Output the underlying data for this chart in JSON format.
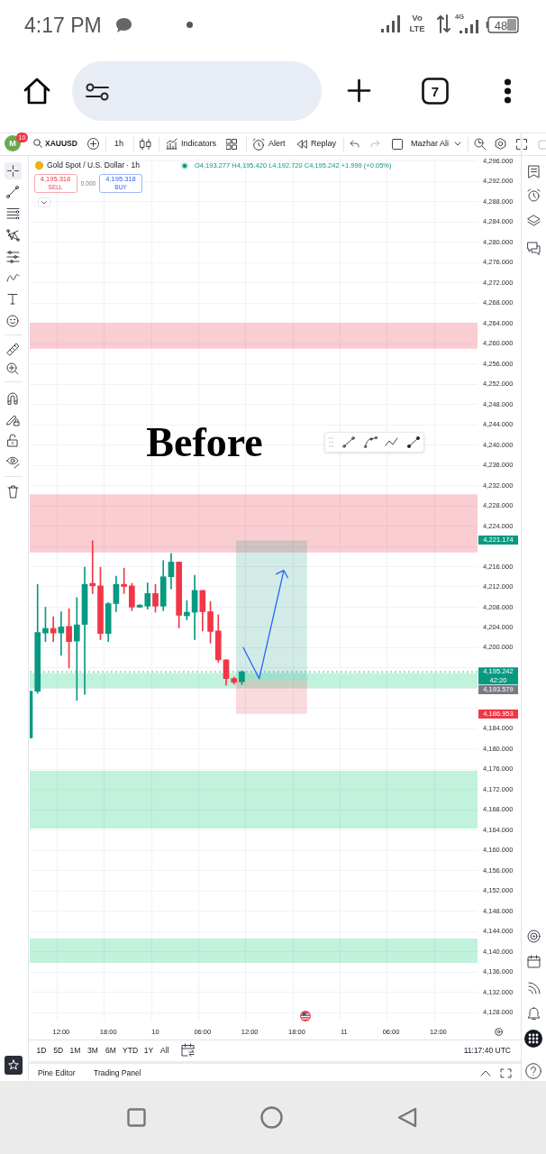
{
  "chart_data": {
    "type": "candlestick",
    "title": "Gold Spot / U.S. Dollar · 1h",
    "subtitle": "O4,193.277 H4,195.420 L4,192.720 C4,195.242 +1.999 (+0.05%)",
    "categories": [
      null,
      null,
      null,
      null,
      "12:00",
      null,
      null,
      null,
      null,
      null,
      "18:00",
      null,
      null,
      null,
      null,
      null,
      "10",
      null,
      null,
      null,
      null,
      null,
      "06:00",
      null,
      null,
      null,
      null,
      null,
      "12:00",
      null,
      null,
      null,
      null,
      null,
      "18:00",
      null,
      null,
      null,
      null,
      null,
      "11",
      null,
      null,
      null,
      null,
      null,
      "06:00",
      null,
      null,
      null,
      null,
      null,
      "12:00",
      null,
      null,
      null,
      null,
      null
    ],
    "ohlc": [
      [
        4182.2,
        4191.5,
        4182.2,
        4191.4
      ],
      [
        4191.4,
        4212.5,
        4191.0,
        4203.0
      ],
      [
        4202.9,
        4208.0,
        4201.2,
        4203.8
      ],
      [
        4203.8,
        4206.1,
        4201.2,
        4202.9
      ],
      [
        4202.9,
        4207.1,
        4198.5,
        4204.1
      ],
      [
        4204.2,
        4207.7,
        4196.0,
        4201.2
      ],
      [
        4201.3,
        4209.9,
        4189.6,
        4204.5
      ],
      [
        4204.6,
        4215.9,
        4190.8,
        4212.5
      ],
      [
        4212.7,
        4221.1,
        4210.7,
        4212.2
      ],
      [
        4212.2,
        4215.9,
        4201.6,
        4202.8
      ],
      [
        4202.8,
        4208.9,
        4201.2,
        4208.7
      ],
      [
        4208.7,
        4214.1,
        4207.1,
        4212.5
      ],
      [
        4212.5,
        4215.7,
        4210.7,
        4212.1
      ],
      [
        4212.2,
        4212.7,
        4207.3,
        4208.0
      ],
      [
        4208.0,
        4208.5,
        4207.9,
        4208.4
      ],
      [
        4208.2,
        4212.8,
        4207.6,
        4210.7
      ],
      [
        4210.7,
        4212.5,
        4207.0,
        4208.2
      ],
      [
        4208.2,
        4217.2,
        4207.3,
        4214.0
      ],
      [
        4214.0,
        4218.6,
        4211.6,
        4216.9
      ],
      [
        4216.9,
        4216.9,
        4203.9,
        4206.4
      ],
      [
        4206.3,
        4209.3,
        4205.5,
        4207.0
      ],
      [
        4207.0,
        4214.3,
        4201.6,
        4211.3
      ],
      [
        4211.3,
        4211.3,
        4203.3,
        4207.1
      ],
      [
        4207.1,
        4209.1,
        4200.9,
        4203.2
      ],
      [
        4203.3,
        4206.5,
        4197.1,
        4197.6
      ],
      [
        4197.6,
        4197.6,
        4192.6,
        4193.9
      ],
      [
        4193.9,
        4194.2,
        4192.8,
        4193.2
      ],
      [
        4193.277,
        4195.42,
        4192.72,
        4195.242
      ],
      null,
      null,
      null,
      null,
      null,
      null,
      null,
      null,
      null,
      null,
      null,
      null,
      null,
      null,
      null,
      null,
      null,
      null,
      null,
      null,
      null,
      null,
      null,
      null,
      null,
      null,
      null,
      null,
      null,
      null
    ],
    "colors": [
      "#089981",
      "#089981",
      "#089981",
      "#f23645",
      "#089981",
      "#f23645",
      "#089981",
      "#089981",
      "#f23645",
      "#f23645",
      "#089981",
      "#089981",
      "#f23645",
      "#f23645",
      "#089981",
      "#089981",
      "#f23645",
      "#089981",
      "#089981",
      "#f23645",
      "#089981",
      "#089981",
      "#f23645",
      "#f23645",
      "#f23645",
      "#f23645",
      "#f23645",
      "#089981",
      null,
      null,
      null,
      null,
      null,
      null,
      null,
      null,
      null,
      null,
      null,
      null,
      null,
      null,
      null,
      null,
      null,
      null,
      null,
      null,
      null,
      null,
      null,
      null,
      null,
      null,
      null,
      null,
      null,
      null
    ],
    "ylim": [
      4126.4,
      4296.7
    ],
    "yticks": [
      {
        "value": 4128,
        "label": "4,128.000"
      },
      {
        "value": 4132,
        "label": "4,132.000"
      },
      {
        "value": 4136,
        "label": "4,136.000"
      },
      {
        "value": 4140,
        "label": "4,140.000"
      },
      {
        "value": 4144,
        "label": "4,144.000"
      },
      {
        "value": 4148,
        "label": "4,148.000"
      },
      {
        "value": 4152,
        "label": "4,152.000"
      },
      {
        "value": 4156,
        "label": "4,156.000"
      },
      {
        "value": 4160,
        "label": "4,160.000"
      },
      {
        "value": 4164,
        "label": "4,164.000"
      },
      {
        "value": 4168,
        "label": "4,168.000"
      },
      {
        "value": 4172,
        "label": "4,172.000"
      },
      {
        "value": 4176,
        "label": "4,176.000"
      },
      {
        "value": 4180,
        "label": "4,180.000"
      },
      {
        "value": 4184,
        "label": "4,184.000"
      },
      {
        "value": 4188,
        "label": null
      },
      {
        "value": 4192,
        "label": null
      },
      {
        "value": 4196,
        "label": null
      },
      {
        "value": 4200,
        "label": "4,200.000"
      },
      {
        "value": 4204,
        "label": "4,204.000"
      },
      {
        "value": 4208,
        "label": "4,208.000"
      },
      {
        "value": 4212,
        "label": "4,212.000"
      },
      {
        "value": 4216,
        "label": "4,216.000"
      },
      {
        "value": 4220,
        "label": null
      },
      {
        "value": 4224,
        "label": "4,224.000"
      },
      {
        "value": 4228,
        "label": "4,228.000"
      },
      {
        "value": 4232,
        "label": "4,232.000"
      },
      {
        "value": 4236,
        "label": "4,236.000"
      },
      {
        "value": 4240,
        "label": "4,240.000"
      },
      {
        "value": 4244,
        "label": "4,244.000"
      },
      {
        "value": 4248,
        "label": "4,248.000"
      },
      {
        "value": 4252,
        "label": "4,252.000"
      },
      {
        "value": 4256,
        "label": "4,256.000"
      },
      {
        "value": 4260,
        "label": "4,260.000"
      },
      {
        "value": 4264,
        "label": "4,264.000"
      },
      {
        "value": 4268,
        "label": "4,268.000"
      },
      {
        "value": 4272,
        "label": "4,272.000"
      },
      {
        "value": 4276,
        "label": "4,276.000"
      },
      {
        "value": 4280,
        "label": "4,280.000"
      },
      {
        "value": 4284,
        "label": "4,284.000"
      },
      {
        "value": 4288,
        "label": "4,288.000"
      },
      {
        "value": 4292,
        "label": "4,292.000"
      },
      {
        "value": 4296,
        "label": "4,296.000"
      }
    ],
    "grid": true,
    "bands": [
      {
        "axis": "y",
        "from": 4259.0,
        "to": 4264.1,
        "color": "#f9cdd1"
      },
      {
        "axis": "y",
        "from": 4218.8,
        "to": 4230.3,
        "color": "#f9cdd1"
      },
      {
        "axis": "y",
        "from": 4192.0,
        "to": 4195.0,
        "color": "#c0f2dc"
      },
      {
        "axis": "y",
        "from": 4164.3,
        "to": 4175.7,
        "color": "#c0f2dc"
      },
      {
        "axis": "y",
        "from": 4137.8,
        "to": 4142.6,
        "color": "#c0f2dc"
      },
      {
        "axis": "y",
        "from": 4221.174,
        "to": 4193.579,
        "color": "#d2ebe6"
      },
      {
        "axis": "y",
        "from": 4186.953,
        "to": 4193.579,
        "color": "#fadadd"
      }
    ],
    "ref_lines": [
      {
        "axis": "y",
        "value": 4195.242,
        "label": "4,195.242",
        "color": "#089981",
        "line_style": "dashed"
      }
    ],
    "annotations": [
      "Before",
      "42:20",
      "4,193.579",
      "XAUUSD",
      "1h",
      "Indicators",
      "Alert",
      "Replay",
      "Mazhar Ali",
      "M",
      "10",
      "4,195.318",
      "SELL",
      "0.000",
      "4,195.318",
      "BUY",
      "4:17 PM",
      "Vo",
      "LTE",
      "4G",
      "48",
      "7",
      "1D",
      "5D",
      "1M",
      "3M",
      "6M",
      "YTD",
      "1Y",
      "All",
      "11:17:40 UTC",
      "Pine Editor",
      "Trading Panel",
      "4,221.174",
      "4,186.953"
    ]
  }
}
